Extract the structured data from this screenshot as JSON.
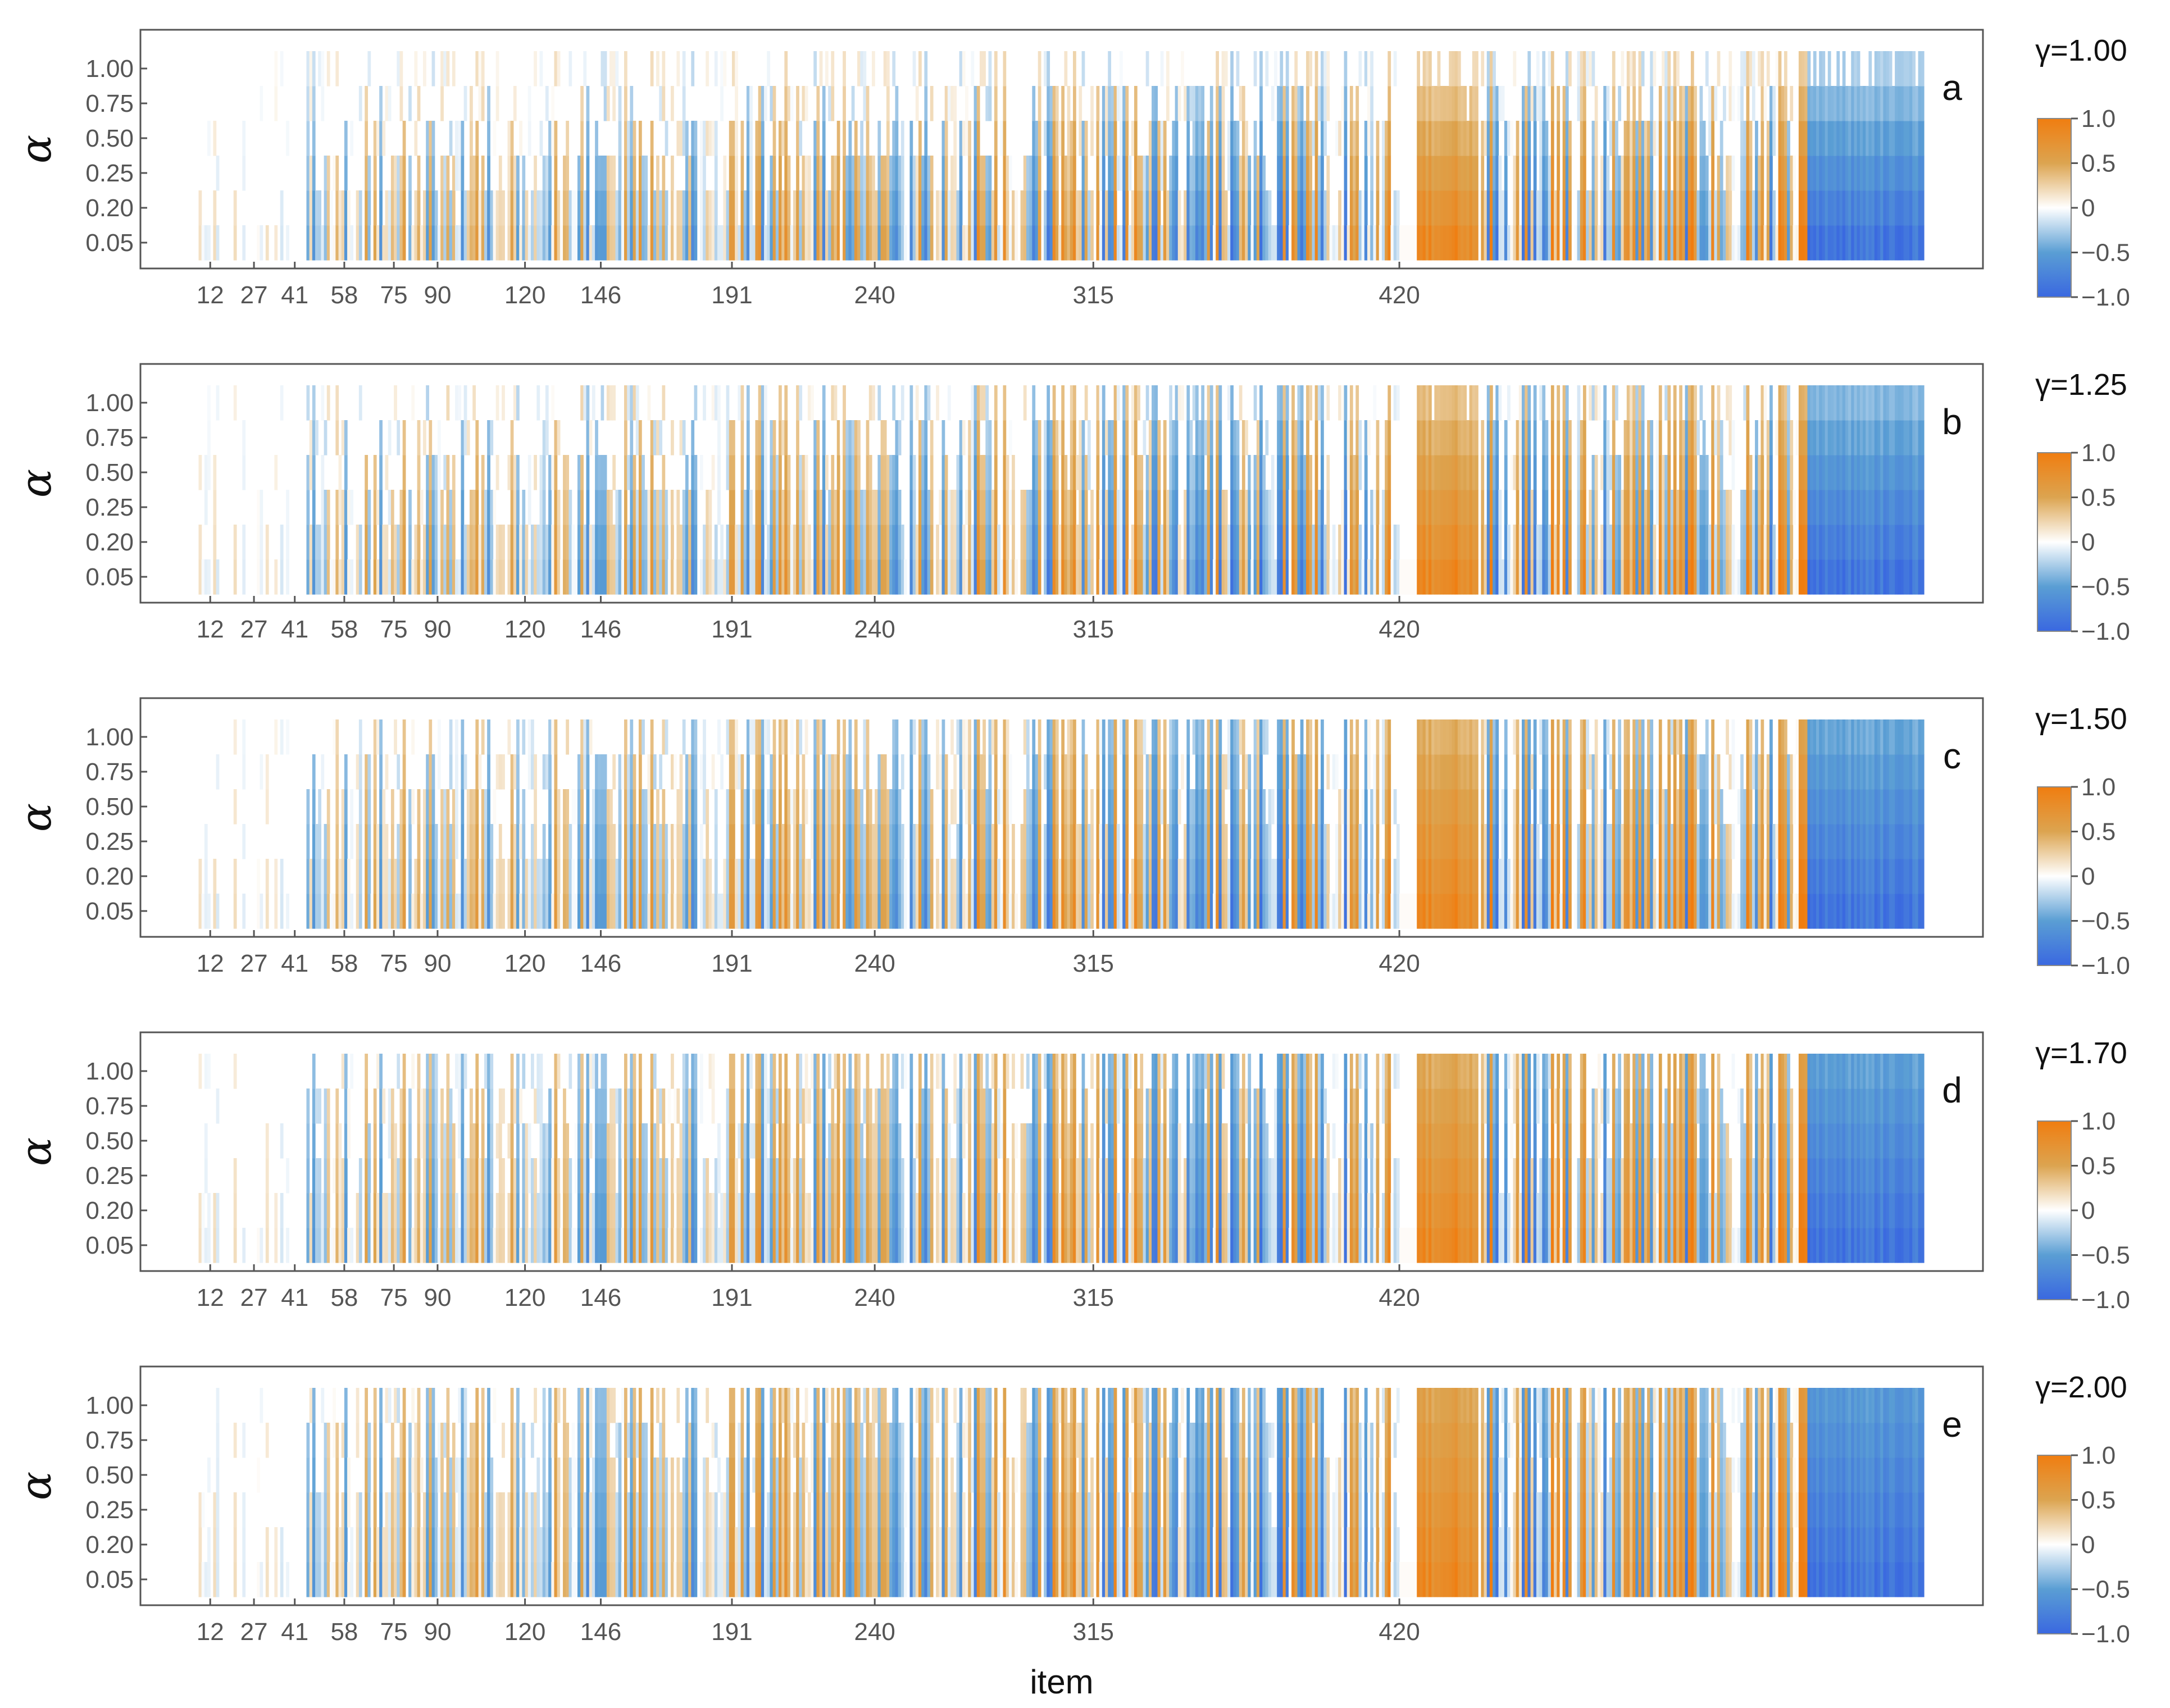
{
  "chart_data": {
    "type": "heatmap",
    "xlabel": "item",
    "ylabel": "α",
    "x_tick_labels": [
      "12",
      "27",
      "41",
      "58",
      "75",
      "90",
      "120",
      "146",
      "191",
      "240",
      "315",
      "420"
    ],
    "y_tick_labels": [
      "0.05",
      "0.20",
      "0.25",
      "0.50",
      "0.75",
      "1.00"
    ],
    "x_ticks": [
      12,
      27,
      41,
      58,
      75,
      90,
      120,
      146,
      191,
      240,
      315,
      420
    ],
    "x_range": [
      0,
      600
    ],
    "value_range": [
      -1.0,
      1.0
    ],
    "colorbar_tick_labels": [
      "1.0",
      "0.5",
      "0",
      "−0.5",
      "−1.0"
    ],
    "colorbar_ticks": [
      1.0,
      0.5,
      0,
      -0.5,
      -1.0
    ],
    "colors": {
      "positive": "#f07d10",
      "positive_mid": "#dca450",
      "neutral": "#ffffff",
      "negative_mid": "#5a9ed4",
      "negative": "#3a68e0"
    },
    "panels": [
      {
        "letter": "a",
        "gamma_label": "γ=1.00",
        "gamma": 1.0
      },
      {
        "letter": "b",
        "gamma_label": "γ=1.25",
        "gamma": 1.25
      },
      {
        "letter": "c",
        "gamma_label": "γ=1.50",
        "gamma": 1.5
      },
      {
        "letter": "d",
        "gamma_label": "γ=1.70",
        "gamma": 1.7
      },
      {
        "letter": "e",
        "gamma_label": "γ=2.00",
        "gamma": 2.0
      }
    ]
  }
}
